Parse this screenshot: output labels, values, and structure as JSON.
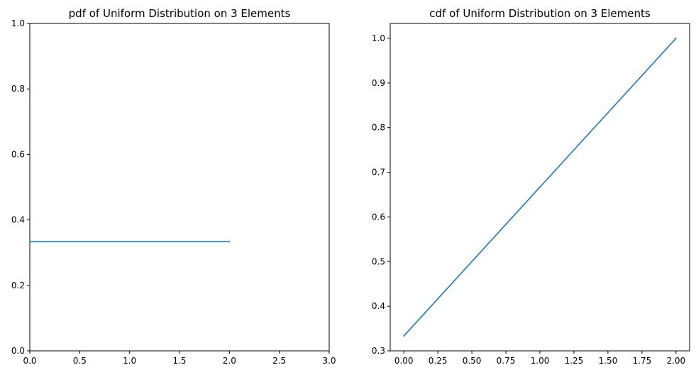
{
  "chart_data": [
    {
      "type": "line",
      "title": "pdf of Uniform Distribution on 3 Elements",
      "xlabel": "",
      "ylabel": "",
      "xlim": [
        0,
        3
      ],
      "ylim": [
        0,
        1
      ],
      "xticks": [
        0,
        0.5,
        1,
        1.5,
        2,
        2.5,
        3
      ],
      "xtick_labels": [
        "0.0",
        "0.5",
        "1.0",
        "1.5",
        "2.0",
        "2.5",
        "3.0"
      ],
      "yticks": [
        0,
        0.2,
        0.4,
        0.6,
        0.8,
        1
      ],
      "ytick_labels": [
        "0.0",
        "0.2",
        "0.4",
        "0.6",
        "0.8",
        "1.0"
      ],
      "grid": false,
      "series": [
        {
          "name": "pdf",
          "color": "#1f77b4",
          "x": [
            0,
            1,
            2
          ],
          "y": [
            0.3333,
            0.3333,
            0.3333
          ]
        }
      ]
    },
    {
      "type": "line",
      "title": "cdf of Uniform Distribution on 3 Elements",
      "xlabel": "",
      "ylabel": "",
      "xlim": [
        -0.1,
        2.1
      ],
      "ylim": [
        0.3,
        1.0333
      ],
      "xticks": [
        0,
        0.25,
        0.5,
        0.75,
        1,
        1.25,
        1.5,
        1.75,
        2
      ],
      "xtick_labels": [
        "0.00",
        "0.25",
        "0.50",
        "0.75",
        "1.00",
        "1.25",
        "1.50",
        "1.75",
        "2.00"
      ],
      "yticks": [
        0.3,
        0.4,
        0.5,
        0.6,
        0.7,
        0.8,
        0.9,
        1.0
      ],
      "ytick_labels": [
        "0.3",
        "0.4",
        "0.5",
        "0.6",
        "0.7",
        "0.8",
        "0.9",
        "1.0"
      ],
      "grid": false,
      "series": [
        {
          "name": "cdf",
          "color": "#1f77b4",
          "x": [
            0,
            1,
            2
          ],
          "y": [
            0.3333,
            0.6667,
            1.0
          ]
        }
      ]
    }
  ]
}
